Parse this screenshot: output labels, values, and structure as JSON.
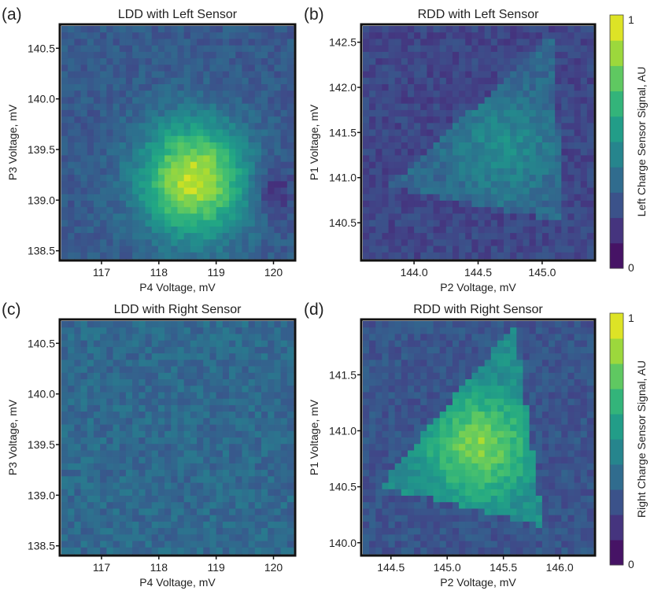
{
  "chart_data": [
    {
      "type": "heatmap",
      "panel_label": "(a)",
      "title": "LDD with Left Sensor",
      "xlabel": "P4 Voltage, mV",
      "ylabel": "P3 Voltage, mV",
      "xlim": [
        116.3,
        120.35
      ],
      "ylim": [
        138.42,
        140.72
      ],
      "xticks": [
        117,
        118,
        119,
        120
      ],
      "yticks": [
        138.5,
        139.0,
        139.5,
        140.0,
        140.5
      ],
      "xtick_labels": [
        "117",
        "118",
        "119",
        "120"
      ],
      "ytick_labels": [
        "138.5",
        "139.0",
        "139.5",
        "140.0",
        "140.5"
      ],
      "grid": false,
      "colorbar": "left",
      "pattern": {
        "kind": "blob",
        "peak": [
          118.6,
          139.2
        ],
        "radius": [
          0.9,
          0.55
        ],
        "peak_value": 0.92,
        "background": 0.28,
        "dark_spot": [
          120.0,
          139.1
        ]
      }
    },
    {
      "type": "heatmap",
      "panel_label": "(b)",
      "title": "RDD with Left Sensor",
      "xlabel": "P2 Voltage, mV",
      "ylabel": "P1 Voltage, mV",
      "xlim": [
        143.6,
        145.4
      ],
      "ylim": [
        140.1,
        142.68
      ],
      "xticks": [
        144.0,
        144.5,
        145.0
      ],
      "yticks": [
        140.5,
        141.0,
        141.5,
        142.0,
        142.5
      ],
      "xtick_labels": [
        "144.0",
        "144.5",
        "145.0"
      ],
      "ytick_labels": [
        "140.5",
        "141.0",
        "141.5",
        "142.0",
        "142.5"
      ],
      "grid": false,
      "colorbar": "left",
      "pattern": {
        "kind": "triangle",
        "vertices": [
          [
            143.8,
            140.9
          ],
          [
            145.1,
            142.6
          ],
          [
            145.15,
            140.5
          ]
        ],
        "peak_value": 0.5,
        "background": 0.25
      }
    },
    {
      "type": "heatmap",
      "panel_label": "(c)",
      "title": "LDD with Right Sensor",
      "xlabel": "P4 Voltage, mV",
      "ylabel": "P3 Voltage, mV",
      "xlim": [
        116.3,
        120.35
      ],
      "ylim": [
        138.42,
        140.72
      ],
      "xticks": [
        117,
        118,
        119,
        120
      ],
      "yticks": [
        138.5,
        139.0,
        139.5,
        140.0,
        140.5
      ],
      "xtick_labels": [
        "117",
        "118",
        "119",
        "120"
      ],
      "ytick_labels": [
        "138.5",
        "139.0",
        "139.5",
        "140.0",
        "140.5"
      ],
      "grid": false,
      "colorbar": "right",
      "pattern": {
        "kind": "noise",
        "background": 0.34
      }
    },
    {
      "type": "heatmap",
      "panel_label": "(d)",
      "title": "RDD with Right Sensor",
      "xlabel": "P2 Voltage, mV",
      "ylabel": "P1 Voltage, mV",
      "xlim": [
        144.25,
        146.3
      ],
      "ylim": [
        139.9,
        141.98
      ],
      "xticks": [
        144.5,
        145.0,
        145.5,
        146.0
      ],
      "yticks": [
        140.0,
        140.5,
        141.0,
        141.5
      ],
      "xtick_labels": [
        "144.5",
        "145.0",
        "145.5",
        "146.0"
      ],
      "ytick_labels": [
        "140.0",
        "140.5",
        "141.0",
        "141.5"
      ],
      "grid": false,
      "colorbar": "right",
      "pattern": {
        "kind": "triangle",
        "vertices": [
          [
            144.4,
            140.5
          ],
          [
            145.6,
            141.95
          ],
          [
            145.85,
            140.15
          ]
        ],
        "peak_value": 0.85,
        "background": 0.3
      }
    }
  ],
  "colorbars": [
    {
      "id": "left",
      "label": "Left Charge Sensor Signal, AU",
      "min_label": "0",
      "max_label": "1",
      "range": [
        0,
        1
      ],
      "levels": 10
    },
    {
      "id": "right",
      "label": "Right Charge Sensor Signal, AU",
      "min_label": "0",
      "max_label": "1",
      "range": [
        0,
        1
      ],
      "levels": 10
    }
  ],
  "colors": {
    "colormap": "viridis",
    "viridis_stops": [
      "#440154",
      "#482475",
      "#414487",
      "#355f8d",
      "#2a788e",
      "#21918c",
      "#22a884",
      "#44bf70",
      "#7ad151",
      "#bddf26",
      "#fde725"
    ],
    "frame": "#111111",
    "text": "#222222"
  }
}
